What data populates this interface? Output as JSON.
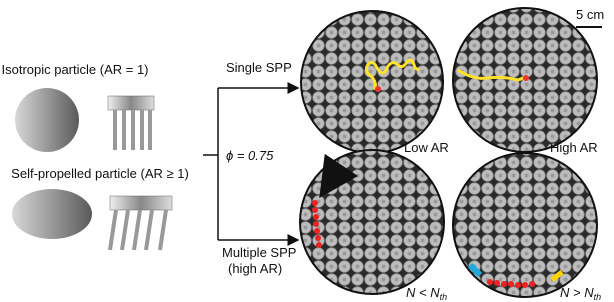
{
  "labels": {
    "isotropic": "Isotropic particle (AR = 1)",
    "self_propelled": "Self-propelled particle (AR ≥ 1)",
    "single": "Single SPP",
    "multiple": [
      "Multiple SPP",
      "(high AR)"
    ],
    "phi": "ϕ = 0.75",
    "low_ar": "Low AR",
    "high_ar": "High AR",
    "n_less": {
      "main": "N < N",
      "sub": "th"
    },
    "n_more": {
      "main": "N > N",
      "sub": "th"
    },
    "scale": "5 cm"
  }
}
